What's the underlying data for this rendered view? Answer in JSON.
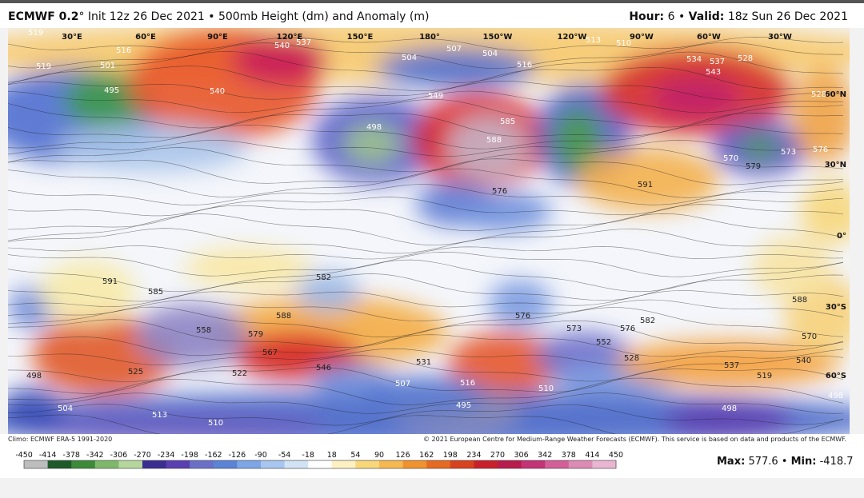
{
  "header": {
    "model": "ECMWF 0.2",
    "degree": "°",
    "description": "Init 12z 26 Dec 2021 • 500mb Height (dm) and Anomaly (m)",
    "hour_label": "Hour:",
    "hour": "6",
    "separator": "•",
    "valid_label": "Valid:",
    "valid": "18z Sun 26 Dec 2021"
  },
  "map": {
    "longitude_labels": [
      "30°E",
      "60°E",
      "90°E",
      "120°E",
      "150°E",
      "180°",
      "150°W",
      "120°W",
      "90°W",
      "60°W",
      "30°W"
    ],
    "latitude_labels": [
      "60°N",
      "30°N",
      "0°",
      "30°S",
      "60°S"
    ],
    "contour_labels": [
      "519",
      "540",
      "537",
      "516",
      "519",
      "501",
      "495",
      "540",
      "504",
      "507",
      "504",
      "516",
      "513",
      "510",
      "534",
      "537",
      "528",
      "543",
      "528",
      "549",
      "585",
      "588",
      "498",
      "573",
      "576",
      "570",
      "579",
      "591",
      "576",
      "591",
      "585",
      "582",
      "588",
      "558",
      "579",
      "567",
      "546",
      "576",
      "573",
      "576",
      "582",
      "552",
      "528",
      "588",
      "570",
      "540",
      "537",
      "519",
      "498",
      "504",
      "513",
      "510",
      "531",
      "516",
      "510",
      "507",
      "495",
      "498",
      "498",
      "522",
      "525"
    ]
  },
  "footer": {
    "climo": "Climo: ECMWF ERA-5 1991-2020",
    "copyright": "© 2021 European Centre for Medium-Range Weather Forecasts (ECMWF). This service is based on data and products of the ECMWF."
  },
  "colorbar": {
    "ticks": [
      -450,
      -414,
      -378,
      -342,
      -306,
      -270,
      -234,
      -198,
      -162,
      -126,
      -90,
      -54,
      -18,
      18,
      54,
      90,
      126,
      162,
      198,
      234,
      270,
      306,
      342,
      378,
      414,
      450
    ]
  },
  "stats": {
    "max_label": "Max:",
    "max": 577.6,
    "separator": "•",
    "min_label": "Min:",
    "min": -418.7
  }
}
